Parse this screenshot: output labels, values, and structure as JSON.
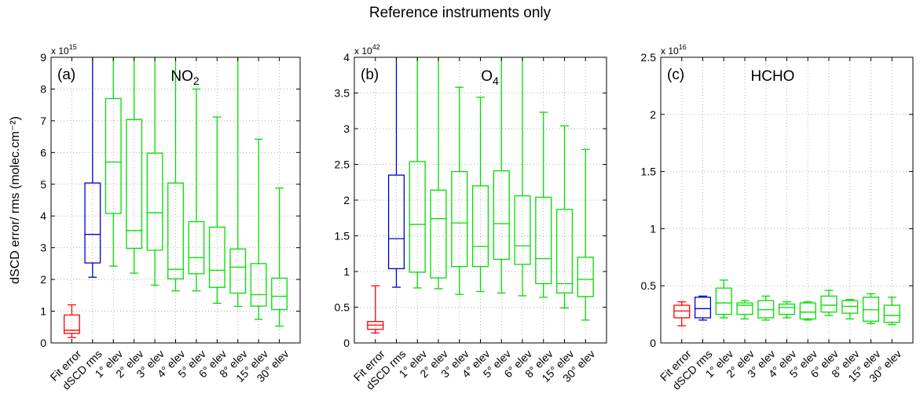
{
  "title": "Reference instruments only",
  "ylabel": "dSCD error/ rms (molec.cm⁻²)",
  "colors": {
    "fit": "#ff0000",
    "rms": "#0000cc",
    "elev": "#00dd00"
  },
  "chart_data": [
    {
      "type": "box",
      "panel": "(a)",
      "species": "NO",
      "species_sub": "2",
      "multiplier_base": "x 10",
      "multiplier_exp": "15",
      "ylim": [
        0,
        9
      ],
      "yticks": [
        0,
        1,
        2,
        3,
        4,
        5,
        6,
        7,
        8,
        9
      ],
      "ytick_labels": [
        "0",
        "1",
        "2",
        "3",
        "4",
        "5",
        "6",
        "7",
        "8",
        "9"
      ],
      "grid": true,
      "categories": [
        "Fit error",
        "dSCD rms",
        "1° elev",
        "2° elev",
        "3° elev",
        "4° elev",
        "5° elev",
        "6° elev",
        "8° elev",
        "15° elev",
        "30° elev"
      ],
      "boxes": [
        {
          "min": 0.17,
          "q1": 0.3,
          "median": 0.4,
          "q3": 0.88,
          "max": 1.2
        },
        {
          "min": 2.07,
          "q1": 2.52,
          "median": 3.42,
          "q3": 5.04,
          "max": 9.0
        },
        {
          "min": 2.42,
          "q1": 4.08,
          "median": 5.7,
          "q3": 7.7,
          "max": 9.0
        },
        {
          "min": 2.2,
          "q1": 2.98,
          "median": 3.54,
          "q3": 7.04,
          "max": 9.0
        },
        {
          "min": 1.82,
          "q1": 2.92,
          "median": 4.1,
          "q3": 5.98,
          "max": 9.0
        },
        {
          "min": 1.64,
          "q1": 2.02,
          "median": 2.32,
          "q3": 5.04,
          "max": 9.0
        },
        {
          "min": 1.64,
          "q1": 2.18,
          "median": 2.69,
          "q3": 3.82,
          "max": 8.0
        },
        {
          "min": 1.25,
          "q1": 1.75,
          "median": 2.29,
          "q3": 3.65,
          "max": 7.12
        },
        {
          "min": 1.15,
          "q1": 1.57,
          "median": 2.39,
          "q3": 2.96,
          "max": 9.0
        },
        {
          "min": 0.74,
          "q1": 1.16,
          "median": 1.52,
          "q3": 2.5,
          "max": 6.42
        },
        {
          "min": 0.53,
          "q1": 1.05,
          "median": 1.47,
          "q3": 2.04,
          "max": 4.88
        }
      ]
    },
    {
      "type": "box",
      "panel": "(b)",
      "species": "O",
      "species_sub": "4",
      "multiplier_base": "x 10",
      "multiplier_exp": "42",
      "ylim": [
        0,
        4
      ],
      "yticks": [
        0,
        0.5,
        1,
        1.5,
        2,
        2.5,
        3,
        3.5,
        4
      ],
      "ytick_labels": [
        "0",
        "0.5",
        "1",
        "1.5",
        "2",
        "2.5",
        "3",
        "3.5",
        "4"
      ],
      "grid": true,
      "categories": [
        "Fit error",
        "dSCD rms",
        "1° elev",
        "2° elev",
        "3° elev",
        "4° elev",
        "5° elev",
        "6° elev",
        "8° elev",
        "15° elev",
        "30° elev"
      ],
      "boxes": [
        {
          "min": 0.14,
          "q1": 0.19,
          "median": 0.25,
          "q3": 0.3,
          "max": 0.8
        },
        {
          "min": 0.78,
          "q1": 1.04,
          "median": 1.46,
          "q3": 2.35,
          "max": 4.0
        },
        {
          "min": 0.77,
          "q1": 0.99,
          "median": 1.66,
          "q3": 2.54,
          "max": 4.0
        },
        {
          "min": 0.76,
          "q1": 0.91,
          "median": 1.74,
          "q3": 2.14,
          "max": 4.0
        },
        {
          "min": 0.68,
          "q1": 1.07,
          "median": 1.68,
          "q3": 2.4,
          "max": 3.58
        },
        {
          "min": 0.72,
          "q1": 1.07,
          "median": 1.35,
          "q3": 2.2,
          "max": 3.44
        },
        {
          "min": 0.7,
          "q1": 1.17,
          "median": 1.67,
          "q3": 2.41,
          "max": 4.0
        },
        {
          "min": 0.66,
          "q1": 1.1,
          "median": 1.36,
          "q3": 2.06,
          "max": 4.0
        },
        {
          "min": 0.64,
          "q1": 0.83,
          "median": 1.18,
          "q3": 2.04,
          "max": 3.23
        },
        {
          "min": 0.49,
          "q1": 0.7,
          "median": 0.83,
          "q3": 1.87,
          "max": 3.04
        },
        {
          "min": 0.32,
          "q1": 0.65,
          "median": 0.89,
          "q3": 1.2,
          "max": 2.71
        }
      ]
    },
    {
      "type": "box",
      "panel": "(c)",
      "species": "HCHO",
      "species_sub": "",
      "multiplier_base": "x 10",
      "multiplier_exp": "16",
      "ylim": [
        0,
        2.5
      ],
      "yticks": [
        0,
        0.5,
        1,
        1.5,
        2,
        2.5
      ],
      "ytick_labels": [
        "0",
        "0.5",
        "1",
        "1.5",
        "2",
        "2.5"
      ],
      "grid": true,
      "categories": [
        "Fit error",
        "dSCD rms",
        "1° elev",
        "2° elev",
        "3° elev",
        "4° elev",
        "5° elev",
        "6° elev",
        "8° elev",
        "15° elev",
        "30° elev"
      ],
      "boxes": [
        {
          "min": 0.15,
          "q1": 0.22,
          "median": 0.28,
          "q3": 0.33,
          "max": 0.36
        },
        {
          "min": 0.2,
          "q1": 0.22,
          "median": 0.3,
          "q3": 0.4,
          "max": 0.41
        },
        {
          "min": 0.22,
          "q1": 0.25,
          "median": 0.35,
          "q3": 0.48,
          "max": 0.55
        },
        {
          "min": 0.21,
          "q1": 0.25,
          "median": 0.33,
          "q3": 0.35,
          "max": 0.37
        },
        {
          "min": 0.2,
          "q1": 0.22,
          "median": 0.29,
          "q3": 0.37,
          "max": 0.41
        },
        {
          "min": 0.22,
          "q1": 0.25,
          "median": 0.31,
          "q3": 0.34,
          "max": 0.36
        },
        {
          "min": 0.2,
          "q1": 0.21,
          "median": 0.27,
          "q3": 0.35,
          "max": 0.36
        },
        {
          "min": 0.24,
          "q1": 0.27,
          "median": 0.33,
          "q3": 0.41,
          "max": 0.46
        },
        {
          "min": 0.21,
          "q1": 0.26,
          "median": 0.32,
          "q3": 0.37,
          "max": 0.38
        },
        {
          "min": 0.17,
          "q1": 0.19,
          "median": 0.29,
          "q3": 0.4,
          "max": 0.43
        },
        {
          "min": 0.16,
          "q1": 0.18,
          "median": 0.24,
          "q3": 0.33,
          "max": 0.4
        }
      ]
    }
  ]
}
